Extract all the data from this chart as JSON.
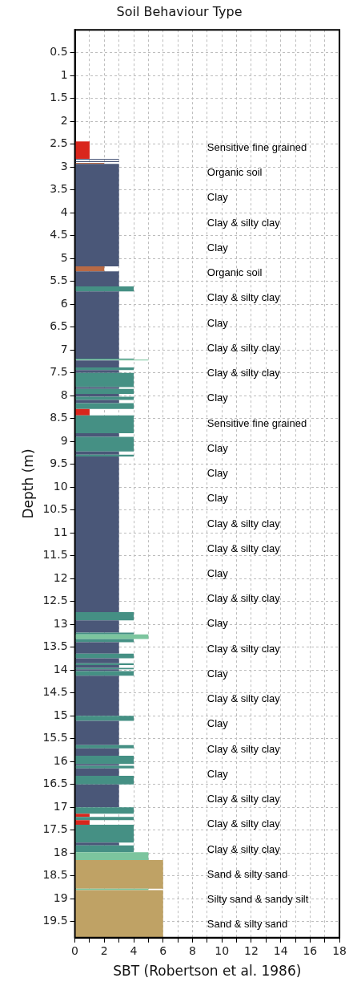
{
  "chart_data": {
    "type": "histogram",
    "orientation": "horizontal",
    "title": "Soil Behaviour Type",
    "xlabel": "SBT (Robertson et al. 1986)",
    "ylabel": "Depth (m)",
    "bins": [
      2.44,
      2.82,
      2.84,
      2.87,
      2.89,
      2.91,
      2.93,
      5.17,
      5.28,
      5.61,
      5.72,
      7.19,
      7.21,
      7.23,
      7.38,
      7.44,
      7.5,
      7.81,
      7.85,
      7.96,
      8.02,
      8.09,
      8.16,
      8.29,
      8.43,
      8.82,
      8.9,
      9.22,
      9.29,
      9.33,
      12.73,
      12.91,
      13.18,
      13.22,
      13.32,
      13.39,
      13.64,
      13.74,
      13.85,
      13.89,
      13.95,
      13.98,
      14.02,
      14.12,
      15.0,
      15.11,
      15.64,
      15.71,
      15.87,
      16.05,
      16.09,
      16.15,
      16.31,
      16.5,
      17.0,
      17.14,
      17.21,
      17.28,
      17.38,
      17.77,
      17.83,
      17.98,
      18.15,
      18.78,
      18.81,
      19.85
    ],
    "values": [
      1,
      3,
      null,
      3,
      null,
      2,
      3,
      2,
      3,
      4,
      3,
      4,
      5,
      3,
      4,
      3,
      4,
      3,
      4,
      3,
      4,
      3,
      4,
      1,
      4,
      3,
      4,
      3,
      4,
      3,
      4,
      3,
      4,
      5,
      4,
      3,
      4,
      3,
      4,
      3,
      4,
      3,
      4,
      3,
      4,
      3,
      4,
      3,
      4,
      3,
      4,
      3,
      4,
      3,
      4,
      1,
      4,
      1,
      4,
      3,
      4,
      5,
      6,
      5,
      6
    ],
    "colors": [
      "#d9261c",
      "#4a5778",
      null,
      "#4a5778",
      null,
      "#b96a45",
      "#4a5778",
      "#b96a45",
      "#4a5778",
      "#459084",
      "#4a5778",
      "#459084",
      "#7cc59e",
      "#4a5778",
      "#459084",
      "#4a5778",
      "#459084",
      "#4a5778",
      "#459084",
      "#4a5778",
      "#459084",
      "#4a5778",
      "#459084",
      "#d9261c",
      "#459084",
      "#4a5778",
      "#459084",
      "#4a5778",
      "#459084",
      "#4a5778",
      "#459084",
      "#4a5778",
      "#459084",
      "#7cc59e",
      "#459084",
      "#4a5778",
      "#459084",
      "#4a5778",
      "#459084",
      "#4a5778",
      "#459084",
      "#4a5778",
      "#459084",
      "#4a5778",
      "#459084",
      "#4a5778",
      "#459084",
      "#4a5778",
      "#459084",
      "#4a5778",
      "#459084",
      "#4a5778",
      "#459084",
      "#4a5778",
      "#459084",
      "#d9261c",
      "#459084",
      "#d9261c",
      "#459084",
      "#4a5778",
      "#459084",
      "#7cc59e",
      "#bfa265",
      "#7cc59e",
      "#bfa265"
    ],
    "xlim": [
      0,
      18
    ],
    "xticks": [
      0,
      {
        "value": 1,
        "label": null
      },
      2,
      {
        "value": 3,
        "label": null
      },
      4,
      {
        "value": 5,
        "label": null
      },
      6,
      {
        "value": 7,
        "label": null
      },
      8,
      {
        "value": 9,
        "label": null
      },
      10,
      {
        "value": 11,
        "label": null
      },
      12,
      {
        "value": 13,
        "label": null
      },
      14,
      {
        "value": 15,
        "label": null
      },
      16,
      {
        "value": 17,
        "label": null
      },
      18
    ],
    "ylim": [
      19.85,
      0
    ],
    "yticks": [
      0.5,
      1,
      1.5,
      2,
      2.5,
      3,
      3.5,
      4,
      4.5,
      5,
      5.5,
      6,
      6.5,
      7,
      7.5,
      8,
      8.5,
      9,
      9.5,
      10,
      10.5,
      11,
      11.5,
      12,
      12.5,
      13,
      13.5,
      14,
      14.5,
      15,
      15.5,
      16,
      16.5,
      17,
      17.5,
      18,
      18.5,
      19,
      19.5
    ],
    "grid": true,
    "legend": false,
    "annotations": [
      "Sensitive fine grained",
      "Organic soil",
      "Clay",
      "Clay & silty clay",
      "Clay",
      "Organic soil",
      "Clay & silty clay",
      "Clay",
      "Clay & silty clay",
      "Clay & silty clay",
      "Clay",
      "Sensitive fine grained",
      "Clay",
      "Clay",
      "Clay",
      "Clay & silty clay",
      "Clay & silty clay",
      "Clay",
      "Clay & silty clay",
      "Clay",
      "Clay & silty clay",
      "Clay",
      "Clay & silty clay",
      "Clay",
      "Clay & silty clay",
      "Clay",
      "Clay & silty clay",
      "Clay & silty clay",
      "Clay & silty clay",
      "Sand & silty sand",
      "Silty sand & sandy silt",
      "Sand & silty sand"
    ]
  }
}
